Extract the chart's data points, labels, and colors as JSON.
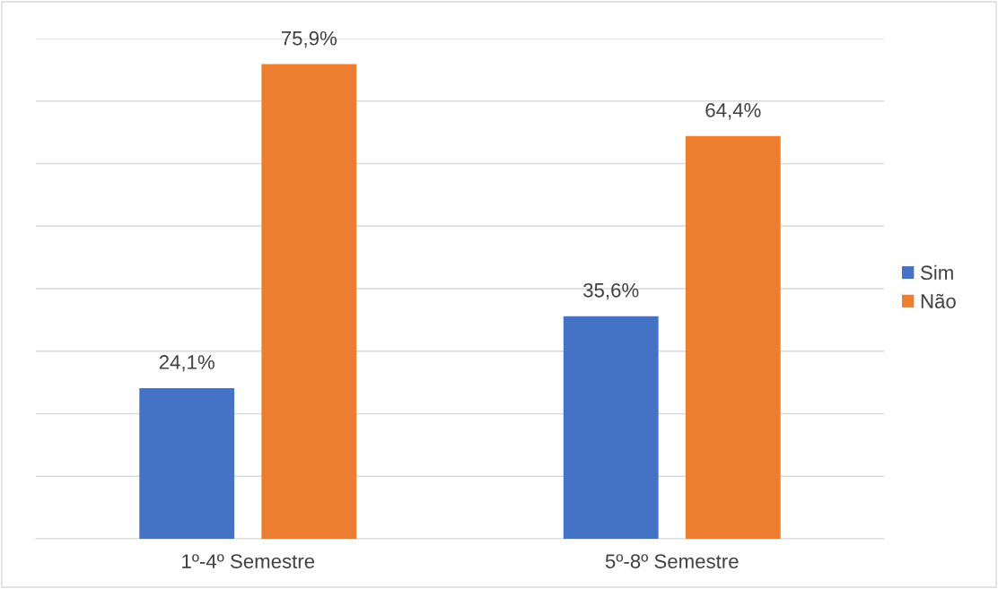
{
  "chart_data": {
    "type": "bar",
    "categories": [
      "1º-4º Semestre",
      "5º-8º Semestre"
    ],
    "series": [
      {
        "name": "Sim",
        "color": "#4472c4",
        "values": [
          24.1,
          35.6
        ],
        "value_labels": [
          "24,1%",
          "35,6%"
        ]
      },
      {
        "name": "Não",
        "color": "#ed7d31",
        "values": [
          75.9,
          64.4
        ],
        "value_labels": [
          "75,9%",
          "64,4%"
        ]
      }
    ],
    "ylim": [
      0,
      80
    ],
    "yticks": [
      {
        "value": 0,
        "label": null
      },
      {
        "value": 10,
        "label": null
      },
      {
        "value": 20,
        "label": null
      },
      {
        "value": 30,
        "label": null
      },
      {
        "value": 40,
        "label": null
      },
      {
        "value": 50,
        "label": null
      },
      {
        "value": 60,
        "label": null
      },
      {
        "value": 70,
        "label": null
      },
      {
        "value": 80,
        "label": null
      }
    ],
    "grid": "y",
    "legend": "right",
    "tick_labels": "x"
  }
}
